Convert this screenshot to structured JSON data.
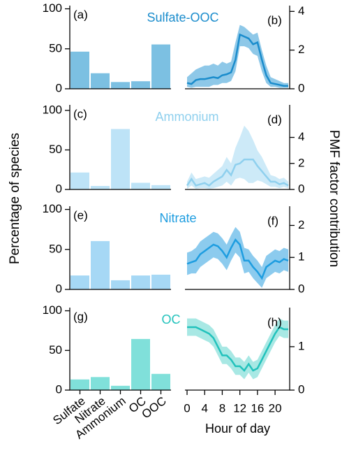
{
  "labels": {
    "y": "Percentage of species",
    "y2": "PMF factor contribution"
  },
  "chart_data": [
    {
      "type": "bar",
      "label": "(a)",
      "values": [
        46,
        19,
        8,
        9,
        55
      ],
      "color": "#7cc0e2",
      "ylim": [
        0,
        104
      ],
      "yticks": [
        0,
        50,
        100
      ]
    },
    {
      "type": "line",
      "label": "(b)",
      "title": "Sulfate-OOC",
      "color": "#1a8ccc",
      "band_color": "#8ec8e8",
      "x": [
        0,
        1,
        2,
        3,
        4,
        5,
        6,
        7,
        8,
        9,
        10,
        11,
        12,
        13,
        14,
        15,
        16,
        17,
        18,
        19,
        20,
        21,
        22,
        23
      ],
      "values": [
        0.3,
        0.25,
        0.45,
        0.5,
        0.5,
        0.55,
        0.6,
        0.55,
        0.7,
        0.75,
        0.85,
        1.5,
        2.8,
        2.7,
        2.6,
        2.3,
        2.4,
        1.5,
        0.7,
        0.3,
        0.25,
        0.2,
        0.15,
        0.15
      ],
      "upper": [
        0.6,
        0.8,
        1.0,
        1.1,
        1.2,
        1.2,
        1.3,
        1.2,
        1.4,
        1.3,
        1.4,
        2.4,
        3.3,
        3.2,
        3.0,
        2.8,
        2.9,
        2.0,
        1.2,
        0.6,
        0.5,
        0.4,
        0.3,
        0.3
      ],
      "lower": [
        0.1,
        0.05,
        0.1,
        0.1,
        0.1,
        0.1,
        0.2,
        0.2,
        0.3,
        0.3,
        0.4,
        0.9,
        2.2,
        2.2,
        2.1,
        1.8,
        1.7,
        0.9,
        0.3,
        0.1,
        0.1,
        0.05,
        0.05,
        0.05
      ],
      "xlim": [
        0,
        23
      ],
      "y2lim": [
        0,
        4.3
      ],
      "y2ticks": [
        0,
        2,
        4
      ]
    },
    {
      "type": "bar",
      "label": "(c)",
      "values": [
        21,
        4,
        76,
        8,
        5
      ],
      "color": "#bde3f7",
      "ylim": [
        0,
        107
      ],
      "yticks": [
        0,
        50,
        100
      ]
    },
    {
      "type": "line",
      "label": "(d)",
      "title": "Ammonium",
      "color": "#8fd0ee",
      "band_color": "#cdeaf8",
      "x": [
        0,
        1,
        2,
        3,
        4,
        5,
        6,
        7,
        8,
        9,
        10,
        11,
        12,
        13,
        14,
        15,
        16,
        17,
        18,
        19,
        20,
        21,
        22,
        23
      ],
      "values": [
        0.3,
        0.8,
        0.3,
        0.4,
        0.5,
        0.3,
        0.6,
        0.8,
        1.0,
        1.5,
        1.1,
        1.9,
        2.0,
        2.3,
        2.3,
        2.3,
        1.8,
        1.4,
        1.0,
        0.6,
        0.6,
        0.4,
        0.5,
        0.3
      ],
      "upper": [
        0.6,
        1.3,
        0.8,
        0.9,
        1.0,
        0.9,
        1.2,
        1.5,
        1.8,
        2.5,
        2.0,
        3.2,
        4.0,
        4.9,
        4.5,
        3.8,
        3.0,
        2.5,
        1.8,
        1.1,
        1.0,
        0.8,
        0.9,
        0.6
      ],
      "lower": [
        0.05,
        0.3,
        0.05,
        0.1,
        0.1,
        0.05,
        0.1,
        0.2,
        0.3,
        0.6,
        0.3,
        0.8,
        0.9,
        0.8,
        0.5,
        0.5,
        0.7,
        0.6,
        0.4,
        0.2,
        0.2,
        0.1,
        0.2,
        0.1
      ],
      "xlim": [
        0,
        23
      ],
      "y2lim": [
        0,
        6.5
      ],
      "y2ticks": [
        0,
        2,
        4
      ]
    },
    {
      "type": "bar",
      "label": "(e)",
      "values": [
        17,
        60,
        11,
        17,
        18
      ],
      "color": "#a6d8f5",
      "ylim": [
        0,
        104
      ],
      "yticks": [
        0,
        50,
        100
      ]
    },
    {
      "type": "line",
      "label": "(f)",
      "title": "Nitrate",
      "color": "#1e9de0",
      "band_color": "#8ccbee",
      "x": [
        0,
        1,
        2,
        3,
        4,
        5,
        6,
        7,
        8,
        9,
        10,
        11,
        12,
        13,
        14,
        15,
        16,
        17,
        18,
        19,
        20,
        21,
        22,
        23
      ],
      "values": [
        0.8,
        0.85,
        0.9,
        1.1,
        1.2,
        1.3,
        1.4,
        1.35,
        1.2,
        1.0,
        1.3,
        1.55,
        1.4,
        0.9,
        0.9,
        0.7,
        0.55,
        0.35,
        0.7,
        0.8,
        0.9,
        0.85,
        0.95,
        0.9
      ],
      "upper": [
        1.15,
        1.2,
        1.3,
        1.5,
        1.6,
        1.7,
        1.8,
        1.75,
        1.6,
        1.4,
        1.7,
        1.95,
        1.8,
        1.3,
        1.25,
        1.05,
        0.9,
        0.7,
        1.05,
        1.15,
        1.25,
        1.2,
        1.3,
        1.25
      ],
      "lower": [
        0.45,
        0.5,
        0.5,
        0.7,
        0.8,
        0.9,
        1.0,
        0.95,
        0.8,
        0.6,
        0.9,
        1.15,
        1.0,
        0.5,
        0.55,
        0.35,
        0.2,
        0.05,
        0.35,
        0.45,
        0.55,
        0.5,
        0.6,
        0.55
      ],
      "xlim": [
        0,
        23
      ],
      "y2lim": [
        0,
        2.6
      ],
      "y2ticks": [
        0,
        1,
        2
      ]
    },
    {
      "type": "bar",
      "label": "(g)",
      "categories": [
        "Sulfate",
        "Nitrate",
        "Ammonium",
        "OC",
        "OOC"
      ],
      "values": [
        13,
        16,
        5,
        64,
        20
      ],
      "color": "#80e0da",
      "ylim": [
        0,
        104
      ],
      "yticks": [
        0,
        50,
        100
      ]
    },
    {
      "type": "line",
      "label": "(h)",
      "title": "OC",
      "color": "#22c2bc",
      "band_color": "#a8e8e4",
      "x": [
        0,
        1,
        2,
        3,
        4,
        5,
        6,
        7,
        8,
        9,
        10,
        11,
        12,
        13,
        14,
        15,
        16,
        17,
        18,
        19,
        20,
        21,
        22,
        23
      ],
      "values": [
        1.45,
        1.45,
        1.45,
        1.4,
        1.35,
        1.3,
        1.2,
        1.0,
        0.8,
        0.8,
        0.7,
        0.55,
        0.55,
        0.45,
        0.6,
        0.45,
        0.5,
        0.7,
        0.9,
        1.1,
        1.3,
        1.45,
        1.4,
        1.4
      ],
      "upper": [
        1.65,
        1.65,
        1.65,
        1.6,
        1.55,
        1.5,
        1.4,
        1.2,
        1.0,
        1.0,
        0.9,
        0.75,
        0.75,
        0.65,
        0.8,
        0.65,
        0.7,
        0.9,
        1.1,
        1.3,
        1.5,
        1.65,
        1.6,
        1.6
      ],
      "lower": [
        1.25,
        1.25,
        1.25,
        1.2,
        1.15,
        1.1,
        1.0,
        0.8,
        0.6,
        0.6,
        0.5,
        0.35,
        0.35,
        0.25,
        0.4,
        0.25,
        0.3,
        0.5,
        0.7,
        0.9,
        1.1,
        1.25,
        1.2,
        1.2
      ],
      "xlim": [
        0,
        23
      ],
      "y2lim": [
        0,
        1.9
      ],
      "y2ticks": [
        0,
        1
      ],
      "xticks": [
        0,
        4,
        8,
        12,
        16,
        20
      ],
      "xlabel": "Hour of day"
    }
  ]
}
